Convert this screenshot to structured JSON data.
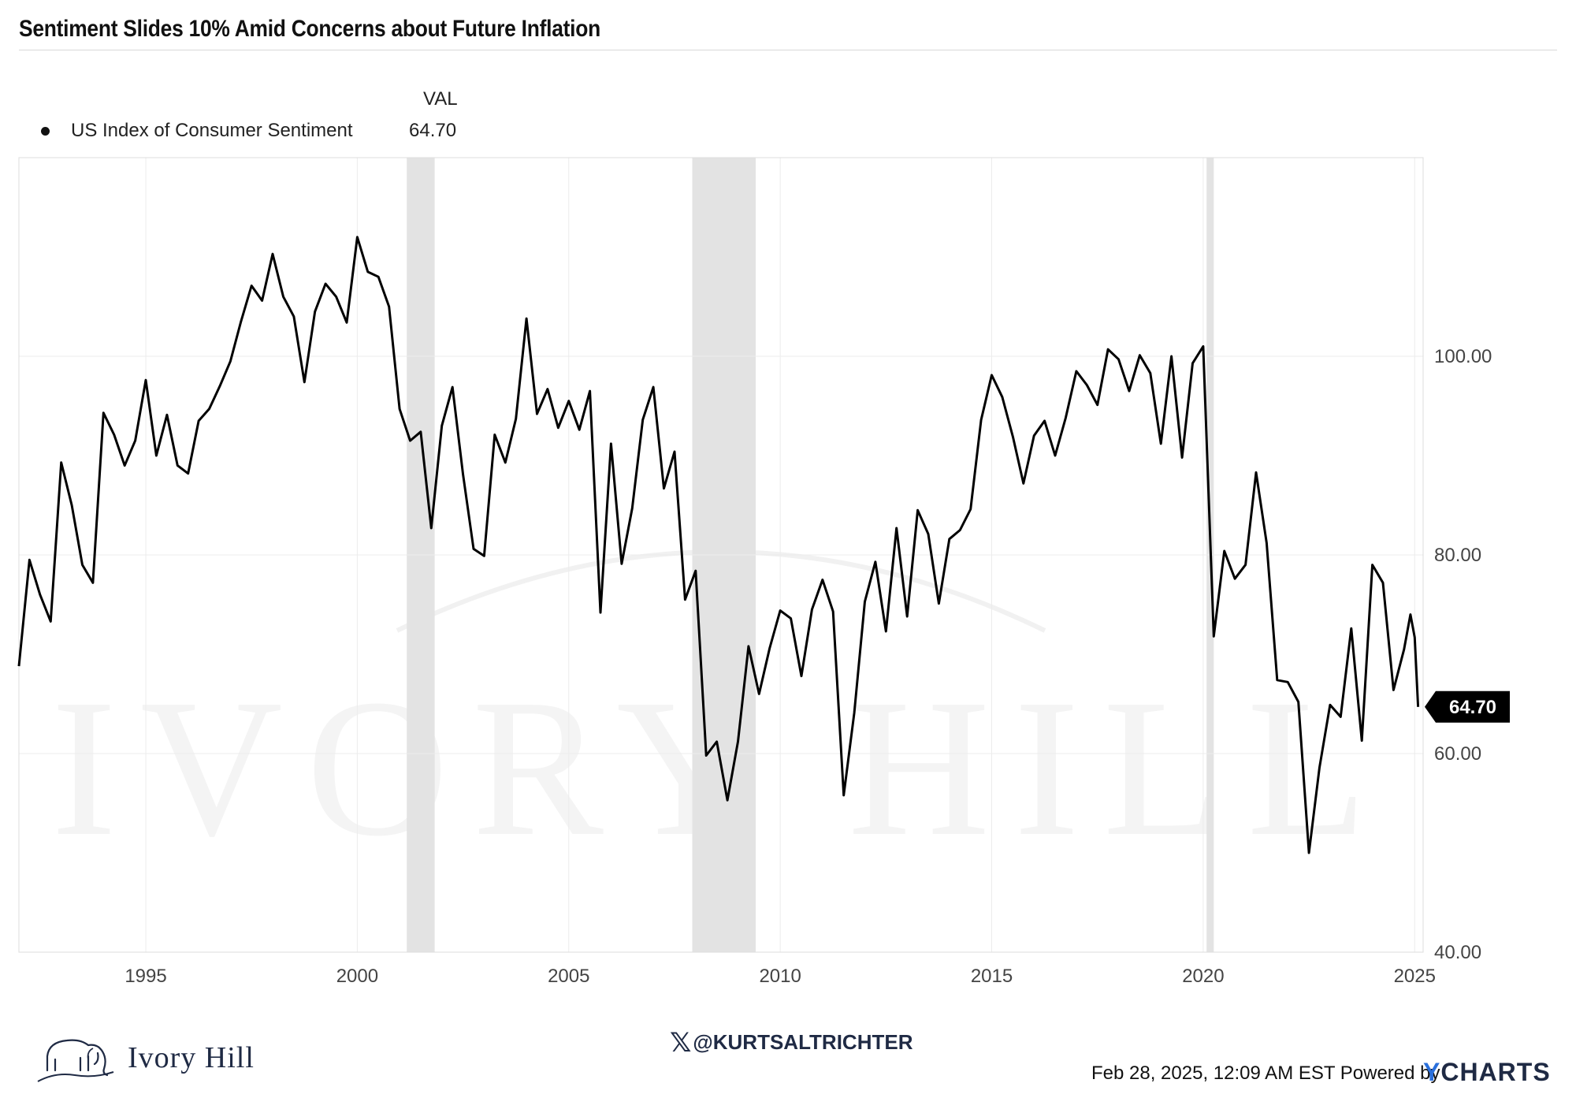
{
  "chart_data": {
    "type": "line",
    "title": "Sentiment Slides 10% Amid Concerns about Future Inflation",
    "legend": {
      "header": "VAL",
      "placement": "top-left",
      "entries": [
        {
          "name": "US Index of Consumer Sentiment",
          "value": "64.70"
        }
      ]
    },
    "series": [
      {
        "name": "US Index of Consumer Sentiment",
        "color": "#000000",
        "points": [
          [
            1992.0,
            68.8
          ],
          [
            1992.25,
            79.5
          ],
          [
            1992.5,
            76.0
          ],
          [
            1992.75,
            73.3
          ],
          [
            1993.0,
            89.3
          ],
          [
            1993.25,
            85.0
          ],
          [
            1993.5,
            79.0
          ],
          [
            1993.75,
            77.2
          ],
          [
            1994.0,
            94.3
          ],
          [
            1994.25,
            92.1
          ],
          [
            1994.5,
            89.0
          ],
          [
            1994.75,
            91.5
          ],
          [
            1995.0,
            97.6
          ],
          [
            1995.25,
            90.0
          ],
          [
            1995.5,
            94.1
          ],
          [
            1995.75,
            89.0
          ],
          [
            1996.0,
            88.2
          ],
          [
            1996.25,
            93.5
          ],
          [
            1996.5,
            94.7
          ],
          [
            1996.75,
            97.0
          ],
          [
            1997.0,
            99.5
          ],
          [
            1997.25,
            103.5
          ],
          [
            1997.5,
            107.1
          ],
          [
            1997.75,
            105.6
          ],
          [
            1998.0,
            110.3
          ],
          [
            1998.25,
            106.0
          ],
          [
            1998.5,
            104.0
          ],
          [
            1998.75,
            97.4
          ],
          [
            1999.0,
            104.5
          ],
          [
            1999.25,
            107.3
          ],
          [
            1999.5,
            106.0
          ],
          [
            1999.75,
            103.4
          ],
          [
            2000.0,
            112.0
          ],
          [
            2000.25,
            108.5
          ],
          [
            2000.5,
            108.0
          ],
          [
            2000.75,
            105.0
          ],
          [
            2001.0,
            94.7
          ],
          [
            2001.25,
            91.5
          ],
          [
            2001.5,
            92.4
          ],
          [
            2001.75,
            82.7
          ],
          [
            2002.0,
            93.0
          ],
          [
            2002.25,
            96.9
          ],
          [
            2002.5,
            88.1
          ],
          [
            2002.75,
            80.6
          ],
          [
            2003.0,
            79.9
          ],
          [
            2003.25,
            92.1
          ],
          [
            2003.5,
            89.3
          ],
          [
            2003.75,
            93.7
          ],
          [
            2004.0,
            103.8
          ],
          [
            2004.25,
            94.2
          ],
          [
            2004.5,
            96.7
          ],
          [
            2004.75,
            92.8
          ],
          [
            2005.0,
            95.5
          ],
          [
            2005.25,
            92.6
          ],
          [
            2005.5,
            96.5
          ],
          [
            2005.75,
            74.2
          ],
          [
            2006.0,
            91.2
          ],
          [
            2006.25,
            79.1
          ],
          [
            2006.5,
            84.7
          ],
          [
            2006.75,
            93.6
          ],
          [
            2007.0,
            96.9
          ],
          [
            2007.25,
            86.7
          ],
          [
            2007.5,
            90.4
          ],
          [
            2007.75,
            75.5
          ],
          [
            2008.0,
            78.4
          ],
          [
            2008.25,
            59.8
          ],
          [
            2008.5,
            61.2
          ],
          [
            2008.75,
            55.3
          ],
          [
            2009.0,
            61.2
          ],
          [
            2009.25,
            70.8
          ],
          [
            2009.5,
            66.0
          ],
          [
            2009.75,
            70.6
          ],
          [
            2010.0,
            74.4
          ],
          [
            2010.25,
            73.6
          ],
          [
            2010.5,
            67.8
          ],
          [
            2010.75,
            74.5
          ],
          [
            2011.0,
            77.5
          ],
          [
            2011.25,
            74.3
          ],
          [
            2011.5,
            55.8
          ],
          [
            2011.75,
            64.1
          ],
          [
            2012.0,
            75.3
          ],
          [
            2012.25,
            79.3
          ],
          [
            2012.5,
            72.3
          ],
          [
            2012.75,
            82.7
          ],
          [
            2013.0,
            73.8
          ],
          [
            2013.25,
            84.5
          ],
          [
            2013.5,
            82.1
          ],
          [
            2013.75,
            75.1
          ],
          [
            2014.0,
            81.6
          ],
          [
            2014.25,
            82.5
          ],
          [
            2014.5,
            84.6
          ],
          [
            2014.75,
            93.6
          ],
          [
            2015.0,
            98.1
          ],
          [
            2015.25,
            95.9
          ],
          [
            2015.5,
            91.9
          ],
          [
            2015.75,
            87.2
          ],
          [
            2016.0,
            92.0
          ],
          [
            2016.25,
            93.5
          ],
          [
            2016.5,
            90.0
          ],
          [
            2016.75,
            93.8
          ],
          [
            2017.0,
            98.5
          ],
          [
            2017.25,
            97.1
          ],
          [
            2017.5,
            95.1
          ],
          [
            2017.75,
            100.7
          ],
          [
            2018.0,
            99.7
          ],
          [
            2018.25,
            96.5
          ],
          [
            2018.5,
            100.1
          ],
          [
            2018.75,
            98.3
          ],
          [
            2019.0,
            91.2
          ],
          [
            2019.25,
            100.0
          ],
          [
            2019.5,
            89.8
          ],
          [
            2019.75,
            99.3
          ],
          [
            2020.0,
            101.0
          ],
          [
            2020.25,
            71.8
          ],
          [
            2020.5,
            80.4
          ],
          [
            2020.75,
            77.6
          ],
          [
            2021.0,
            79.0
          ],
          [
            2021.25,
            88.3
          ],
          [
            2021.5,
            81.2
          ],
          [
            2021.75,
            67.4
          ],
          [
            2022.0,
            67.2
          ],
          [
            2022.25,
            65.2
          ],
          [
            2022.5,
            50.0
          ],
          [
            2022.75,
            58.6
          ],
          [
            2023.0,
            64.9
          ],
          [
            2023.25,
            63.7
          ],
          [
            2023.5,
            72.6
          ],
          [
            2023.75,
            61.3
          ],
          [
            2024.0,
            79.0
          ],
          [
            2024.25,
            77.2
          ],
          [
            2024.5,
            66.4
          ],
          [
            2024.75,
            70.5
          ],
          [
            2024.9,
            74.0
          ],
          [
            2025.0,
            71.7
          ],
          [
            2025.08,
            64.7
          ]
        ]
      }
    ],
    "x_range": [
      1992.0,
      2025.2
    ],
    "x_ticks": [
      1995,
      2000,
      2005,
      2010,
      2015,
      2020,
      2025
    ],
    "y_range": [
      40,
      120
    ],
    "y_ticks": [
      "40.00",
      "60.00",
      "80.00",
      "100.00"
    ],
    "y_tick_values": [
      40,
      60,
      80,
      100
    ],
    "last_value_label": "64.70",
    "recession_bands": [
      [
        2001.17,
        2001.83
      ],
      [
        2007.92,
        2009.42
      ],
      [
        2020.08,
        2020.25
      ]
    ],
    "grid": true,
    "band_color": "#e3e3e3"
  },
  "watermark": "IVORY HILL",
  "logo": {
    "name": "Ivory Hill",
    "icon": "elephant-icon"
  },
  "footer": {
    "handle": "@KURTSALTRICHTER",
    "x_icon": "x-logo-icon",
    "timestamp": "Feb 28, 2025, 12:09 AM EST Powered by",
    "brand_y": "Y",
    "brand_rest": "CHARTS"
  }
}
